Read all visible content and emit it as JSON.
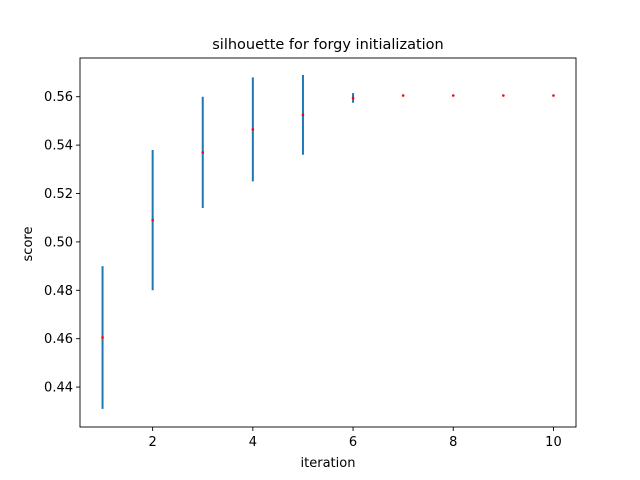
{
  "chart_data": {
    "type": "scatter",
    "title": "silhouette for forgy initialization",
    "xlabel": "iteration",
    "ylabel": "score",
    "xlim": [
      0.55,
      10.45
    ],
    "ylim": [
      0.4235,
      0.576
    ],
    "xticks": [
      2,
      4,
      6,
      8,
      10
    ],
    "yticks": [
      0.44,
      0.46,
      0.48,
      0.5,
      0.52,
      0.54,
      0.56
    ],
    "ytick_labels": [
      "0.44",
      "0.46",
      "0.48",
      "0.50",
      "0.52",
      "0.54",
      "0.56"
    ],
    "grid": false,
    "series": [
      {
        "marker_color": "#ff0000",
        "errorbar_color": "#1f77b4",
        "x": [
          1,
          2,
          3,
          4,
          5,
          6,
          7,
          8,
          9,
          10
        ],
        "y": [
          0.4605,
          0.509,
          0.537,
          0.5465,
          0.5525,
          0.5595,
          0.5605,
          0.5605,
          0.5605,
          0.5605
        ],
        "yerr_low": [
          0.431,
          0.48,
          0.514,
          0.525,
          0.536,
          0.5575,
          0.5605,
          0.5605,
          0.5605,
          0.5605
        ],
        "yerr_high": [
          0.49,
          0.538,
          0.56,
          0.568,
          0.569,
          0.5615,
          0.5605,
          0.5605,
          0.5605,
          0.5605
        ]
      }
    ]
  }
}
